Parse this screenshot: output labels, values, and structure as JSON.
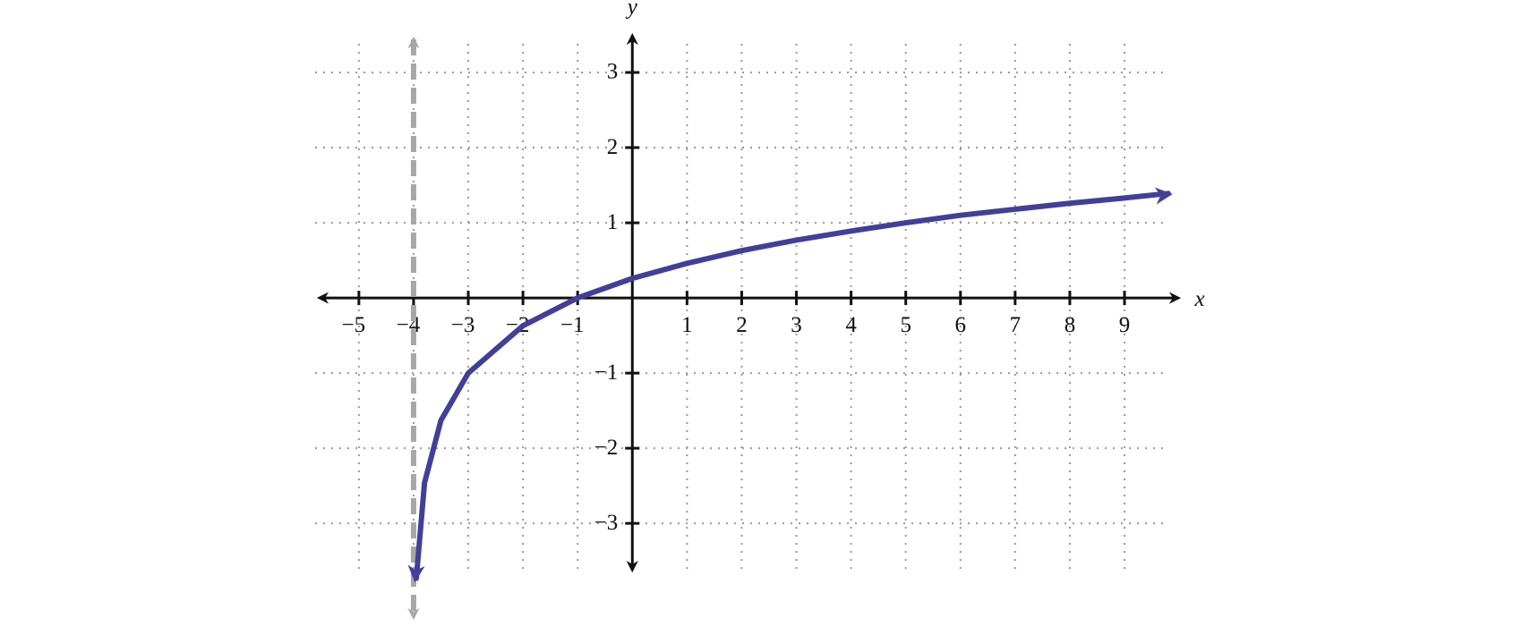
{
  "chart_data": {
    "type": "line",
    "x_label": "x",
    "y_label": "y",
    "x": [
      -3.95,
      -3.8,
      -3.5,
      -3,
      -2,
      -1,
      0,
      1,
      2,
      3,
      4,
      5,
      6,
      7,
      8,
      9,
      9.8
    ],
    "series": [
      {
        "color": "#40409a",
        "values": [
          -3.73,
          -2.46,
          -1.63,
          -1,
          -0.37,
          0,
          0.26,
          0.46,
          0.63,
          0.77,
          0.89,
          1,
          1.1,
          1.18,
          1.26,
          1.33,
          1.39
        ]
      }
    ],
    "asymptote_x": -4,
    "xlim": [
      -5.8,
      9.9
    ],
    "ylim": [
      -3.7,
      3.5
    ],
    "xticks": [
      {
        "value": -5,
        "label": "−5"
      },
      {
        "value": -4,
        "label": "−4"
      },
      {
        "value": -3,
        "label": "−3"
      },
      {
        "value": -2,
        "label": "−2"
      },
      {
        "value": -1,
        "label": "−1"
      },
      1,
      2,
      3,
      4,
      5,
      6,
      7,
      8,
      9
    ],
    "yticks": [
      {
        "value": -3,
        "label": "−3"
      },
      {
        "value": -2,
        "label": "−2"
      },
      {
        "value": -1,
        "label": "−1"
      },
      1,
      2,
      3
    ],
    "grid": true
  }
}
